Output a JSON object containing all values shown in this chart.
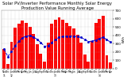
{
  "title": "Solar PV/Inverter Performance Monthly Solar Energy Production Value Running Average",
  "bar_values": [
    230,
    55,
    320,
    490,
    540,
    580,
    545,
    500,
    415,
    295,
    175,
    85,
    315,
    535,
    585,
    615,
    590,
    550,
    515,
    485,
    405,
    315,
    165,
    85,
    325,
    545,
    600,
    635,
    155,
    75
  ],
  "running_avg": [
    230,
    143,
    202,
    274,
    327,
    370,
    389,
    393,
    378,
    351,
    311,
    267,
    275,
    314,
    348,
    376,
    383,
    386,
    390,
    389,
    382,
    373,
    350,
    323,
    330,
    343,
    359,
    376,
    347,
    317
  ],
  "bar_color": "#ff0000",
  "avg_color": "#0000cc",
  "bg_color": "#ffffff",
  "plot_bg": "#ffffff",
  "grid_color": "#aaaaaa",
  "ylim": [
    0,
    700
  ],
  "ytick_labels": [
    "0",
    "100",
    "200",
    "300",
    "400",
    "500",
    "600",
    "700"
  ],
  "ytick_vals": [
    0,
    100,
    200,
    300,
    400,
    500,
    600,
    700
  ],
  "title_fontsize": 3.8,
  "tick_fontsize": 3.0,
  "label_fontsize": 3.0
}
